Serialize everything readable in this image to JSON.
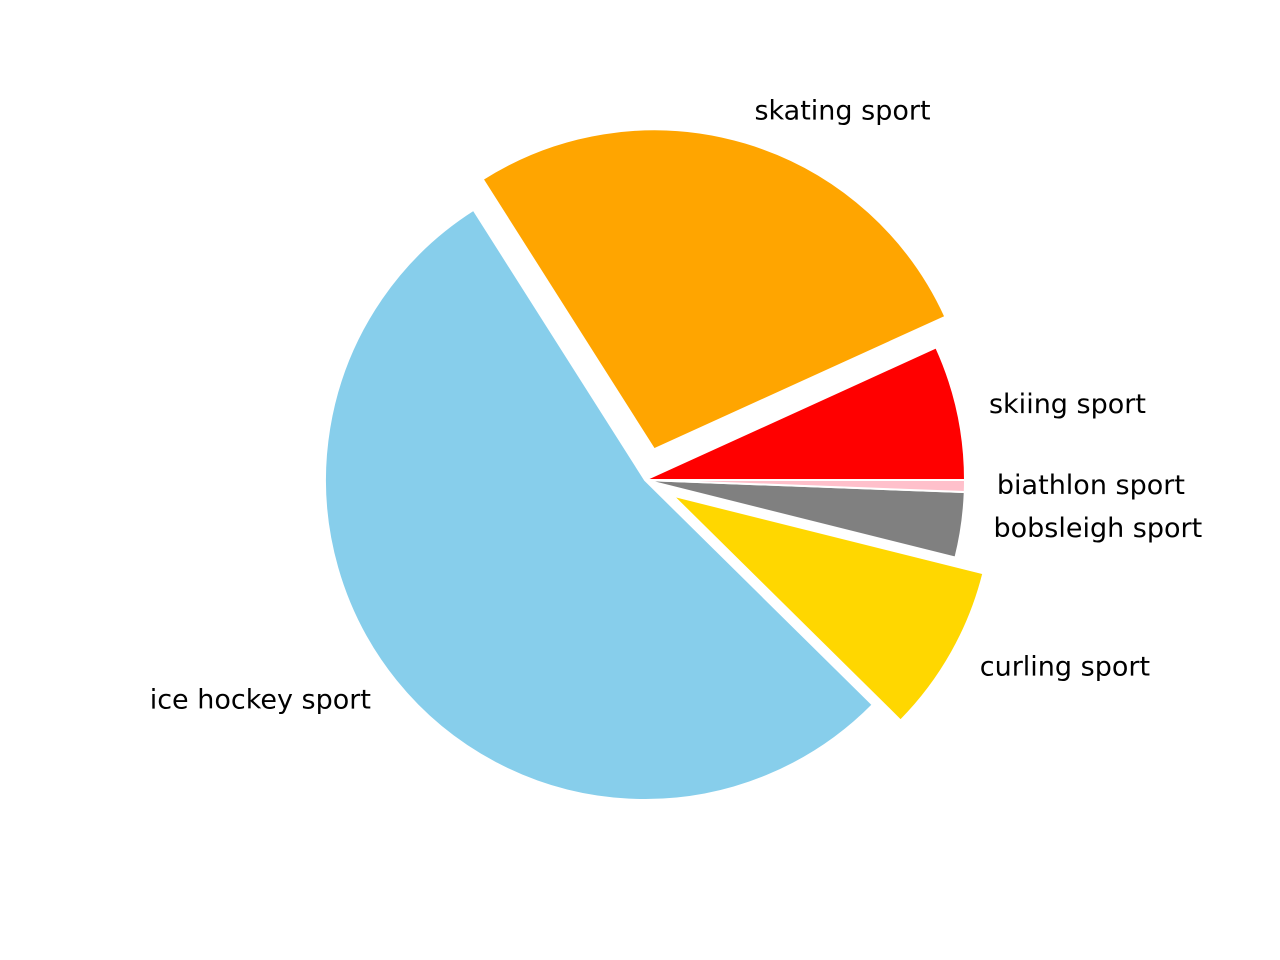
{
  "chart_data": {
    "type": "pie",
    "title": "",
    "labels": [
      "skiing sport",
      "skating sport",
      "ice hockey sport",
      "curling sport",
      "bobsleigh sport",
      "biathlon sport"
    ],
    "values": [
      6.8,
      27.2,
      53.6,
      8.5,
      3.3,
      0.6
    ],
    "colors": [
      "#ff0000",
      "#ffa500",
      "#87ceeb",
      "#ffd700",
      "#808080",
      "#ffc0cb"
    ],
    "exploded": [
      "skating sport",
      "curling sport"
    ],
    "start_angle": "0° (3 o'clock), counter-clockwise",
    "legend": "none"
  }
}
